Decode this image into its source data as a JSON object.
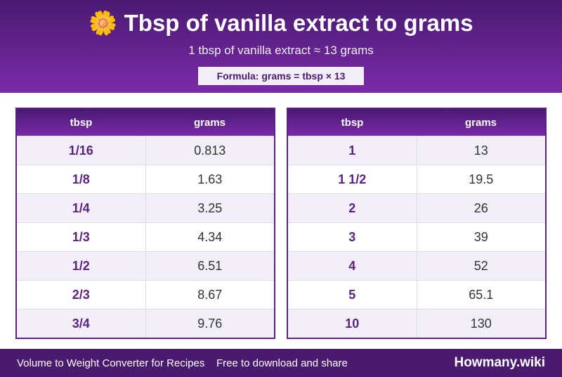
{
  "header": {
    "icon": "🌼",
    "title": "Tbsp of vanilla extract to grams",
    "subtitle": "1 tbsp of vanilla extract ≈ 13 grams",
    "formula": "Formula: grams = tbsp × 13"
  },
  "tables": [
    {
      "columns": [
        "tbsp",
        "grams"
      ],
      "rows": [
        [
          "1/16",
          "0.813"
        ],
        [
          "1/8",
          "1.63"
        ],
        [
          "1/4",
          "3.25"
        ],
        [
          "1/3",
          "4.34"
        ],
        [
          "1/2",
          "6.51"
        ],
        [
          "2/3",
          "8.67"
        ],
        [
          "3/4",
          "9.76"
        ]
      ]
    },
    {
      "columns": [
        "tbsp",
        "grams"
      ],
      "rows": [
        [
          "1",
          "13"
        ],
        [
          "1 1/2",
          "19.5"
        ],
        [
          "2",
          "26"
        ],
        [
          "3",
          "39"
        ],
        [
          "4",
          "52"
        ],
        [
          "5",
          "65.1"
        ],
        [
          "10",
          "130"
        ]
      ]
    }
  ],
  "footer": {
    "left": "Volume to Weight Converter for Recipes",
    "middle": "Free to download and share",
    "brand": "Howmany.wiki"
  }
}
